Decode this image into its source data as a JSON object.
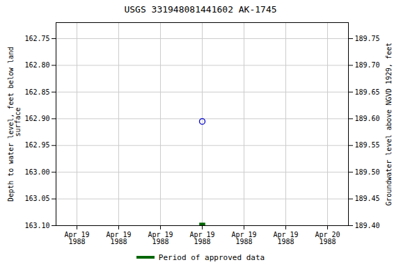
{
  "chart_data": {
    "type": "scatter",
    "title": "USGS 331948081441602 AK-1745",
    "ylabel": "Depth to water level, feet below land\n surface",
    "y2label": "Groundwater level above NGVD 1929, feet",
    "categories": [
      "Apr 19\n1988",
      "Apr 19\n1988",
      "Apr 19\n1988",
      "Apr 19\n1988",
      "Apr 19\n1988",
      "Apr 19\n1988",
      "Apr 20\n1988"
    ],
    "series": [
      {
        "color": "#0000cc",
        "marker": "open_circle",
        "values": [
          null,
          null,
          null,
          162.905,
          null,
          null,
          null
        ]
      },
      {
        "name": "Period of approved data",
        "color": "#006600",
        "marker": "square",
        "values": [
          null,
          null,
          null,
          163.1,
          null,
          null,
          null
        ]
      }
    ],
    "ylim": [
      163.1,
      162.72
    ],
    "yticks": [
      162.75,
      {
        "value": 162.8,
        "label": "162.80"
      },
      162.85,
      {
        "value": 162.9,
        "label": "162.90"
      },
      162.95,
      {
        "value": 163.0,
        "label": "163.00"
      },
      163.05,
      {
        "value": 163.1,
        "label": "163.10"
      }
    ],
    "y2lim": [
      189.4,
      189.78
    ],
    "y2ticks": [
      189.75,
      {
        "value": 189.7,
        "label": "189.70"
      },
      189.65,
      {
        "value": 189.6,
        "label": "189.60"
      },
      189.55,
      {
        "value": 189.5,
        "label": "189.50"
      },
      189.45,
      {
        "value": 189.4,
        "label": "189.40"
      }
    ],
    "grid": true,
    "legend": "bottom"
  }
}
